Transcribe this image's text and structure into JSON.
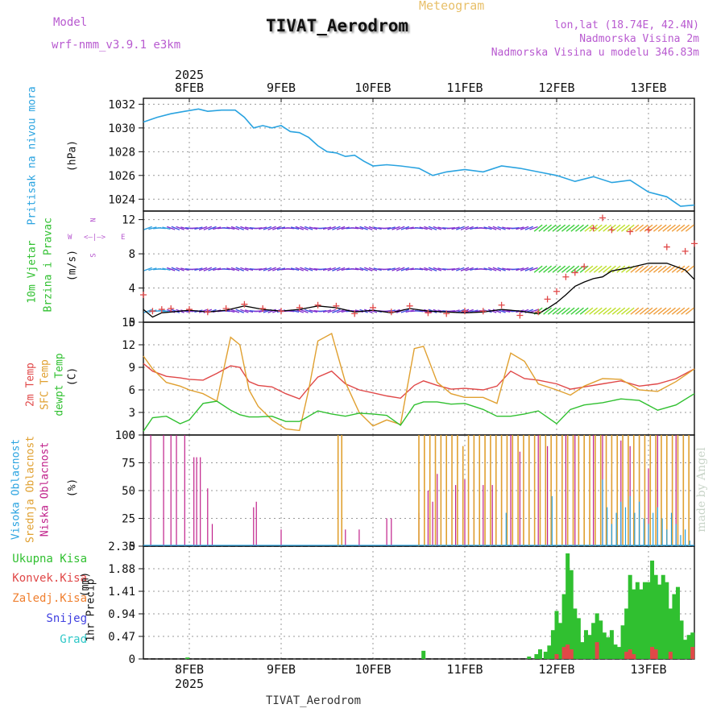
{
  "header": {
    "title": "TIVAT_Aerodrom",
    "subtitle": "Meteogram",
    "model_label": "Model",
    "model_name": "wrf-nmm_v3.9.1 e3km",
    "location": "lon,lat (18.74E, 42.4N)",
    "elevation": "Nadmorska Visina 2m",
    "model_elevation": "Nadmorska Visina u modelu 346.83m"
  },
  "footer": {
    "station": "TIVAT_Aerodrom"
  },
  "watermark": "made by Angel",
  "colors": {
    "pressure": "#2aa3e0",
    "temp2m": "#e04848",
    "sfc": "#e0a030",
    "dewpt": "#30c030",
    "wind_obs": "#000000",
    "gust": "#e04848",
    "high_cloud": "#2aa3e0",
    "mid_cloud": "#e0a030",
    "low_cloud": "#c0208a",
    "total_precip": "#30c030",
    "conv_precip": "#e04848",
    "freezing": "#f08030",
    "snow": "#4040e0",
    "hail": "#30c8c8"
  },
  "time_axis": {
    "year": "2025",
    "days": [
      "8FEB",
      "9FEB",
      "10FEB",
      "11FEB",
      "12FEB",
      "13FEB"
    ]
  },
  "chart_data": [
    {
      "type": "line",
      "id": "pressure",
      "ylabel_title": "Pritisak na nivou mora",
      "ylabel_unit": "(hPa)",
      "ylim": [
        1023,
        1032.5
      ],
      "yticks": [
        "1024",
        "1026",
        "1028",
        "1030",
        "1032"
      ],
      "x": [
        7.5,
        7.65,
        7.8,
        7.95,
        8.1,
        8.2,
        8.35,
        8.5,
        8.6,
        8.7,
        8.8,
        8.9,
        9.0,
        9.1,
        9.2,
        9.3,
        9.4,
        9.5,
        9.6,
        9.7,
        9.8,
        9.9,
        10.0,
        10.15,
        10.3,
        10.5,
        10.65,
        10.8,
        11.0,
        11.2,
        11.4,
        11.6,
        11.8,
        12.0,
        12.2,
        12.4,
        12.6,
        12.8,
        13.0,
        13.2,
        13.35,
        13.5
      ],
      "series": [
        {
          "name": "Pritisak",
          "values": [
            1030.5,
            1030.9,
            1031.2,
            1031.4,
            1031.6,
            1031.4,
            1031.5,
            1031.5,
            1030.9,
            1030.0,
            1030.2,
            1030.0,
            1030.2,
            1029.7,
            1029.6,
            1029.2,
            1028.5,
            1028.0,
            1027.9,
            1027.6,
            1027.7,
            1027.2,
            1026.8,
            1026.9,
            1026.8,
            1026.6,
            1026.0,
            1026.3,
            1026.5,
            1026.3,
            1026.8,
            1026.6,
            1026.3,
            1026.0,
            1025.5,
            1025.9,
            1025.4,
            1025.6,
            1024.6,
            1024.2,
            1023.4,
            1023.5
          ]
        }
      ]
    },
    {
      "type": "line",
      "id": "wind",
      "ylabel_title": "10m Vjetar",
      "ylabel_title2": "Brzina i Pravac",
      "ylabel_unit": "(m/s)",
      "compass": {
        "n": "N",
        "s": "S",
        "w": "W",
        "e": "E"
      },
      "ylim": [
        0,
        13
      ],
      "yticks": [
        "0",
        "4",
        "8",
        "12"
      ],
      "x": [
        7.5,
        7.6,
        7.7,
        7.8,
        8.0,
        8.2,
        8.4,
        8.6,
        8.8,
        9.0,
        9.2,
        9.4,
        9.6,
        9.8,
        10.0,
        10.2,
        10.4,
        10.6,
        10.8,
        11.0,
        11.2,
        11.4,
        11.6,
        11.8,
        11.9,
        12.0,
        12.1,
        12.2,
        12.3,
        12.4,
        12.5,
        12.6,
        12.8,
        13.0,
        13.2,
        13.4,
        13.5
      ],
      "series": [
        {
          "name": "Brzina",
          "values": [
            1.5,
            0.6,
            1.1,
            1.2,
            1.4,
            1.2,
            1.4,
            1.9,
            1.5,
            1.3,
            1.5,
            1.9,
            1.7,
            1.2,
            1.4,
            1.1,
            1.6,
            1.3,
            1.2,
            1.1,
            1.2,
            1.5,
            1.3,
            1.0,
            1.6,
            2.3,
            3.2,
            4.2,
            4.7,
            5.1,
            5.3,
            6.0,
            6.4,
            6.9,
            6.9,
            6.1,
            5.0
          ]
        },
        {
          "name": "Udar",
          "values": [
            3.2,
            1.3,
            1.5,
            1.6,
            1.5,
            1.2,
            1.6,
            2.1,
            1.6,
            1.3,
            1.7,
            2.0,
            1.9,
            1.0,
            1.7,
            1.2,
            1.9,
            1.1,
            1.0,
            1.3,
            1.3,
            2.0,
            0.8,
            1.2,
            2.7,
            3.6,
            5.3,
            5.8,
            6.5,
            11.0,
            12.2,
            10.8,
            10.6,
            10.8,
            8.8,
            8.3,
            9.2
          ]
        }
      ],
      "arrow_rows": [
        1.3,
        6.2,
        11.0
      ]
    },
    {
      "type": "line",
      "id": "temperature",
      "ylabel_title": "2m Temp",
      "ylabel_title2": "SFC Temp",
      "ylabel_title3": "dewpt Temp",
      "ylabel_unit": "(C)",
      "ylim": [
        0,
        15
      ],
      "yticks": [
        "0",
        "3",
        "6",
        "9",
        "12",
        "15"
      ],
      "x": [
        7.5,
        7.6,
        7.75,
        7.9,
        8.0,
        8.15,
        8.3,
        8.45,
        8.55,
        8.65,
        8.75,
        8.9,
        9.05,
        9.2,
        9.3,
        9.4,
        9.55,
        9.7,
        9.85,
        10.0,
        10.15,
        10.3,
        10.45,
        10.55,
        10.7,
        10.85,
        11.0,
        11.2,
        11.35,
        11.5,
        11.65,
        11.8,
        12.0,
        12.15,
        12.3,
        12.5,
        12.7,
        12.9,
        13.1,
        13.3,
        13.5
      ],
      "series": [
        {
          "name": "2m Temp",
          "values": [
            9.5,
            8.5,
            7.8,
            7.6,
            7.4,
            7.3,
            8.2,
            9.2,
            9.0,
            7.1,
            6.6,
            6.4,
            5.5,
            4.8,
            6.3,
            7.7,
            8.5,
            6.8,
            6.0,
            5.6,
            5.2,
            4.9,
            6.6,
            7.2,
            6.6,
            6.1,
            6.2,
            6.0,
            6.5,
            8.5,
            7.5,
            7.3,
            6.8,
            6.1,
            6.4,
            6.8,
            7.2,
            6.5,
            6.8,
            7.5,
            8.8
          ]
        },
        {
          "name": "SFC Temp",
          "values": [
            10.5,
            8.8,
            7.0,
            6.5,
            6.0,
            5.5,
            4.5,
            13.0,
            12.0,
            6.0,
            3.8,
            2.0,
            0.8,
            0.6,
            6.0,
            12.5,
            13.5,
            7.0,
            3.0,
            1.2,
            2.0,
            1.4,
            11.5,
            11.8,
            7.0,
            5.5,
            5.0,
            5.0,
            4.2,
            10.9,
            9.8,
            6.8,
            6.0,
            5.3,
            6.5,
            7.5,
            7.4,
            6.0,
            5.8,
            7.1,
            8.8
          ]
        },
        {
          "name": "dewpt Temp",
          "values": [
            0.5,
            2.3,
            2.5,
            1.5,
            2.0,
            4.2,
            4.5,
            3.3,
            2.7,
            2.4,
            2.4,
            2.5,
            1.8,
            1.8,
            2.5,
            3.2,
            2.8,
            2.5,
            2.9,
            2.8,
            2.6,
            1.3,
            4.0,
            4.4,
            4.4,
            4.1,
            4.2,
            3.4,
            2.5,
            2.5,
            2.8,
            3.2,
            1.5,
            3.4,
            4.0,
            4.3,
            4.8,
            4.6,
            3.3,
            4.0,
            5.5
          ]
        }
      ]
    },
    {
      "type": "bar",
      "id": "cloud",
      "ylabel_title": "Visoka Oblacnost",
      "ylabel_title2": "Srednja Oblacnost",
      "ylabel_title3": "Niska Oblacnost",
      "ylabel_unit": "(%)",
      "ylim": [
        0,
        100
      ],
      "yticks": [
        "0",
        "25",
        "50",
        "75",
        "100"
      ],
      "series": [
        {
          "name": "Niska Oblacnost",
          "x": [
            7.58,
            7.72,
            7.8,
            7.86,
            7.95,
            8.05,
            8.08,
            8.12,
            8.2,
            8.25,
            8.7,
            8.73,
            9.0,
            9.7,
            9.85,
            10.15,
            10.2,
            10.5,
            10.6,
            10.65,
            10.7,
            10.8,
            10.9,
            11.0,
            11.1,
            11.2,
            11.3,
            11.4,
            11.5,
            11.6,
            11.7,
            11.8,
            11.9,
            12.1,
            12.2,
            12.3,
            12.4,
            12.5,
            12.6,
            12.7,
            12.8,
            12.9,
            13.0,
            13.1,
            13.2,
            13.3
          ],
          "values": [
            100,
            100,
            100,
            100,
            100,
            80,
            80,
            80,
            52,
            20,
            35,
            40,
            15,
            15,
            15,
            25,
            25,
            30,
            50,
            40,
            65,
            50,
            55,
            60,
            70,
            55,
            55,
            75,
            100,
            85,
            90,
            100,
            90,
            100,
            100,
            95,
            100,
            100,
            65,
            95,
            90,
            100,
            70,
            100,
            95,
            100
          ]
        },
        {
          "name": "Srednja Oblacnost",
          "x": [
            9.62,
            9.66,
            10.5,
            10.56,
            10.62,
            10.68,
            10.74,
            10.8,
            10.86,
            10.92,
            10.98,
            11.04,
            11.1,
            11.16,
            11.22,
            11.28,
            11.34,
            11.4,
            11.46,
            11.52,
            11.58,
            11.64,
            11.7,
            11.76,
            11.82,
            11.88,
            11.94,
            12.0,
            12.06,
            12.12,
            12.18,
            12.24,
            12.3,
            12.36,
            12.42,
            12.48,
            12.54,
            12.6,
            12.66,
            12.72,
            12.78,
            12.84,
            12.9,
            12.96,
            13.02,
            13.08,
            13.14,
            13.2,
            13.26,
            13.32,
            13.38,
            13.44
          ],
          "values": [
            100,
            100,
            100,
            100,
            100,
            100,
            100,
            100,
            100,
            100,
            90,
            100,
            100,
            100,
            100,
            100,
            100,
            100,
            100,
            100,
            100,
            100,
            100,
            100,
            100,
            100,
            100,
            100,
            100,
            100,
            100,
            100,
            100,
            100,
            100,
            100,
            100,
            100,
            100,
            100,
            100,
            100,
            100,
            100,
            100,
            100,
            100,
            100,
            100,
            100,
            100,
            100
          ]
        },
        {
          "name": "Visoka Oblacnost",
          "x": [
            11.45,
            11.95,
            12.5,
            12.55,
            12.6,
            12.65,
            12.7,
            12.75,
            12.8,
            12.85,
            12.9,
            12.95,
            13.0,
            13.05,
            13.1,
            13.15,
            13.2,
            13.25,
            13.3,
            13.35,
            13.4,
            13.45
          ],
          "values": [
            30,
            45,
            60,
            35,
            20,
            30,
            40,
            35,
            45,
            30,
            40,
            25,
            20,
            30,
            35,
            25,
            15,
            30,
            20,
            10,
            15,
            5
          ]
        }
      ]
    },
    {
      "type": "bar",
      "id": "precip",
      "ylabel_title": "1hr Precip",
      "ylabel_unit": "(mm)",
      "ylim": [
        0,
        2.35
      ],
      "yticks": [
        "0",
        "0.47",
        "0.94",
        "1.41",
        "1.88",
        "2.35"
      ],
      "legend": [
        "Ukupna Kisa",
        "Konvek.Kisa",
        "Zaledj.Kisa",
        "Snijeg",
        "Grad"
      ],
      "series": [
        {
          "name": "Ukupna Kisa",
          "x": [
            7.98,
            10.55,
            11.7,
            11.78,
            11.82,
            11.88,
            11.92,
            11.96,
            12.0,
            12.04,
            12.08,
            12.12,
            12.16,
            12.2,
            12.24,
            12.28,
            12.32,
            12.36,
            12.4,
            12.44,
            12.48,
            12.52,
            12.56,
            12.6,
            12.64,
            12.68,
            12.72,
            12.76,
            12.8,
            12.84,
            12.88,
            12.92,
            12.96,
            13.0,
            13.04,
            13.08,
            13.12,
            13.16,
            13.2,
            13.24,
            13.28,
            13.32,
            13.36,
            13.4,
            13.44,
            13.48
          ],
          "values": [
            0.03,
            0.17,
            0.05,
            0.1,
            0.2,
            0.15,
            0.28,
            0.6,
            1.0,
            0.75,
            1.35,
            2.2,
            1.85,
            1.05,
            0.85,
            0.35,
            0.6,
            0.5,
            0.75,
            0.95,
            0.8,
            0.55,
            0.45,
            0.6,
            0.3,
            0.25,
            0.7,
            1.05,
            1.75,
            1.45,
            1.6,
            1.45,
            1.6,
            1.6,
            2.05,
            1.75,
            1.55,
            1.75,
            1.6,
            1.05,
            1.35,
            1.5,
            0.8,
            0.4,
            0.5,
            0.55
          ]
        },
        {
          "name": "Konvek.Kisa",
          "x": [
            12.0,
            12.08,
            12.12,
            12.16,
            12.44,
            12.76,
            12.8,
            12.84,
            13.04,
            13.08,
            13.24,
            13.48
          ],
          "values": [
            0.1,
            0.25,
            0.3,
            0.2,
            0.35,
            0.15,
            0.2,
            0.1,
            0.25,
            0.2,
            0.15,
            0.25
          ]
        }
      ]
    }
  ]
}
